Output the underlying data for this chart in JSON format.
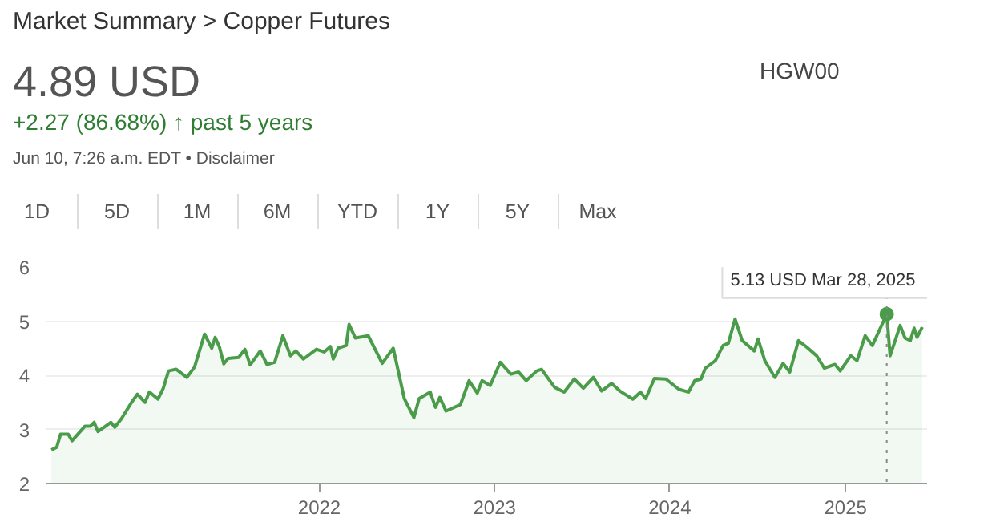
{
  "chart_data": {
    "type": "area",
    "title": "Market Summary > Copper Futures",
    "subtitle": "4.89 USD",
    "annotations": [
      "+2.27 (86.68%) ↑ past 5 years",
      "Jun 10, 7:26 a.m. EDT • Disclaimer",
      "HGW00",
      "1D",
      "5D",
      "1M",
      "6M",
      "YTD",
      "1Y",
      "5Y",
      "Max",
      {
        "text": "5.13 USD  Mar 28, 2025",
        "x": "2025-03-28",
        "y": 5.13
      }
    ],
    "ref_lines": [
      {
        "axis": "x",
        "value": "2025-03-28",
        "label": null,
        "color": "#888888",
        "line_style": "dotted"
      }
    ],
    "x": [
      "2020-06-22",
      "2020-07-03",
      "2020-07-11",
      "2020-07-27",
      "2020-08-04",
      "2020-08-31",
      "2020-09-11",
      "2020-09-19",
      "2020-09-27",
      "2020-10-13",
      "2020-10-24",
      "2020-11-01",
      "2020-11-15",
      "2020-12-06",
      "2020-12-18",
      "2021-01-03",
      "2021-01-12",
      "2021-01-30",
      "2021-02-10",
      "2021-02-21",
      "2021-03-09",
      "2021-03-31",
      "2021-04-16",
      "2021-05-07",
      "2021-05-22",
      "2021-05-29",
      "2021-06-07",
      "2021-06-16",
      "2021-06-25",
      "2021-07-17",
      "2021-07-30",
      "2021-08-10",
      "2021-08-31",
      "2021-09-14",
      "2021-09-30",
      "2021-10-17",
      "2021-11-02",
      "2021-11-13",
      "2021-11-29",
      "2021-12-26",
      "2022-01-11",
      "2022-01-24",
      "2022-01-30",
      "2022-02-09",
      "2022-02-26",
      "2022-03-04",
      "2022-03-17",
      "2022-04-13",
      "2022-05-12",
      "2022-06-04",
      "2022-06-27",
      "2022-07-17",
      "2022-07-28",
      "2022-08-20",
      "2022-08-31",
      "2022-09-09",
      "2022-09-22",
      "2022-10-22",
      "2022-11-09",
      "2022-11-26",
      "2022-12-06",
      "2022-12-23",
      "2023-01-13",
      "2023-02-04",
      "2023-02-20",
      "2023-03-08",
      "2023-03-30",
      "2023-04-09",
      "2023-05-06",
      "2023-05-26",
      "2023-06-16",
      "2023-07-05",
      "2023-07-26",
      "2023-08-12",
      "2023-09-02",
      "2023-09-19",
      "2023-10-16",
      "2023-11-01",
      "2023-11-12",
      "2023-11-30",
      "2023-12-24",
      "2024-01-20",
      "2024-02-09",
      "2024-02-22",
      "2024-03-06",
      "2024-03-15",
      "2024-04-05",
      "2024-04-21",
      "2024-05-02",
      "2024-05-16",
      "2024-05-31",
      "2024-06-25",
      "2024-07-03",
      "2024-07-17",
      "2024-08-07",
      "2024-08-24",
      "2024-09-07",
      "2024-09-25",
      "2024-10-11",
      "2024-11-02",
      "2024-11-18",
      "2024-12-10",
      "2024-12-21",
      "2025-01-12",
      "2025-01-25",
      "2025-02-11",
      "2025-02-26",
      "2025-03-28",
      "2025-04-04",
      "2025-04-25",
      "2025-05-05",
      "2025-05-16",
      "2025-05-24",
      "2025-05-30",
      "2025-06-10"
    ],
    "series": [
      {
        "color": "#4a9c4a",
        "values": [
          2.62,
          2.67,
          2.91,
          2.91,
          2.79,
          3.06,
          3.06,
          3.13,
          2.96,
          3.06,
          3.13,
          3.04,
          3.2,
          3.5,
          3.65,
          3.5,
          3.69,
          3.56,
          3.76,
          4.08,
          4.11,
          3.96,
          4.15,
          4.76,
          4.5,
          4.7,
          4.52,
          4.21,
          4.31,
          4.33,
          4.48,
          4.19,
          4.45,
          4.2,
          4.24,
          4.73,
          4.36,
          4.45,
          4.3,
          4.48,
          4.43,
          4.53,
          4.3,
          4.5,
          4.55,
          4.94,
          4.69,
          4.73,
          4.22,
          4.5,
          3.57,
          3.22,
          3.57,
          3.69,
          3.41,
          3.59,
          3.34,
          3.46,
          3.9,
          3.67,
          3.9,
          3.81,
          4.24,
          4.02,
          4.06,
          3.9,
          4.08,
          4.11,
          3.78,
          3.69,
          3.93,
          3.76,
          3.96,
          3.71,
          3.85,
          3.71,
          3.56,
          3.69,
          3.57,
          3.94,
          3.93,
          3.74,
          3.69,
          3.9,
          3.93,
          4.13,
          4.27,
          4.55,
          4.59,
          5.04,
          4.64,
          4.45,
          4.67,
          4.27,
          3.96,
          4.22,
          4.06,
          4.64,
          4.53,
          4.36,
          4.13,
          4.2,
          4.08,
          4.36,
          4.27,
          4.73,
          4.55,
          5.13,
          4.36,
          4.92,
          4.69,
          4.64,
          4.87,
          4.7,
          4.89
        ]
      }
    ],
    "xlim": [
      "2020-06-10",
      "2025-06-20"
    ],
    "xticks": [
      {
        "value": "2022-01-01",
        "label": "2022"
      },
      {
        "value": "2023-01-01",
        "label": "2023"
      },
      {
        "value": "2024-01-01",
        "label": "2024"
      },
      {
        "value": "2025-01-01",
        "label": "2025"
      }
    ],
    "ylim": [
      2,
      6
    ],
    "yticks": [
      2,
      3,
      4,
      5,
      6
    ],
    "grid": "y"
  }
}
